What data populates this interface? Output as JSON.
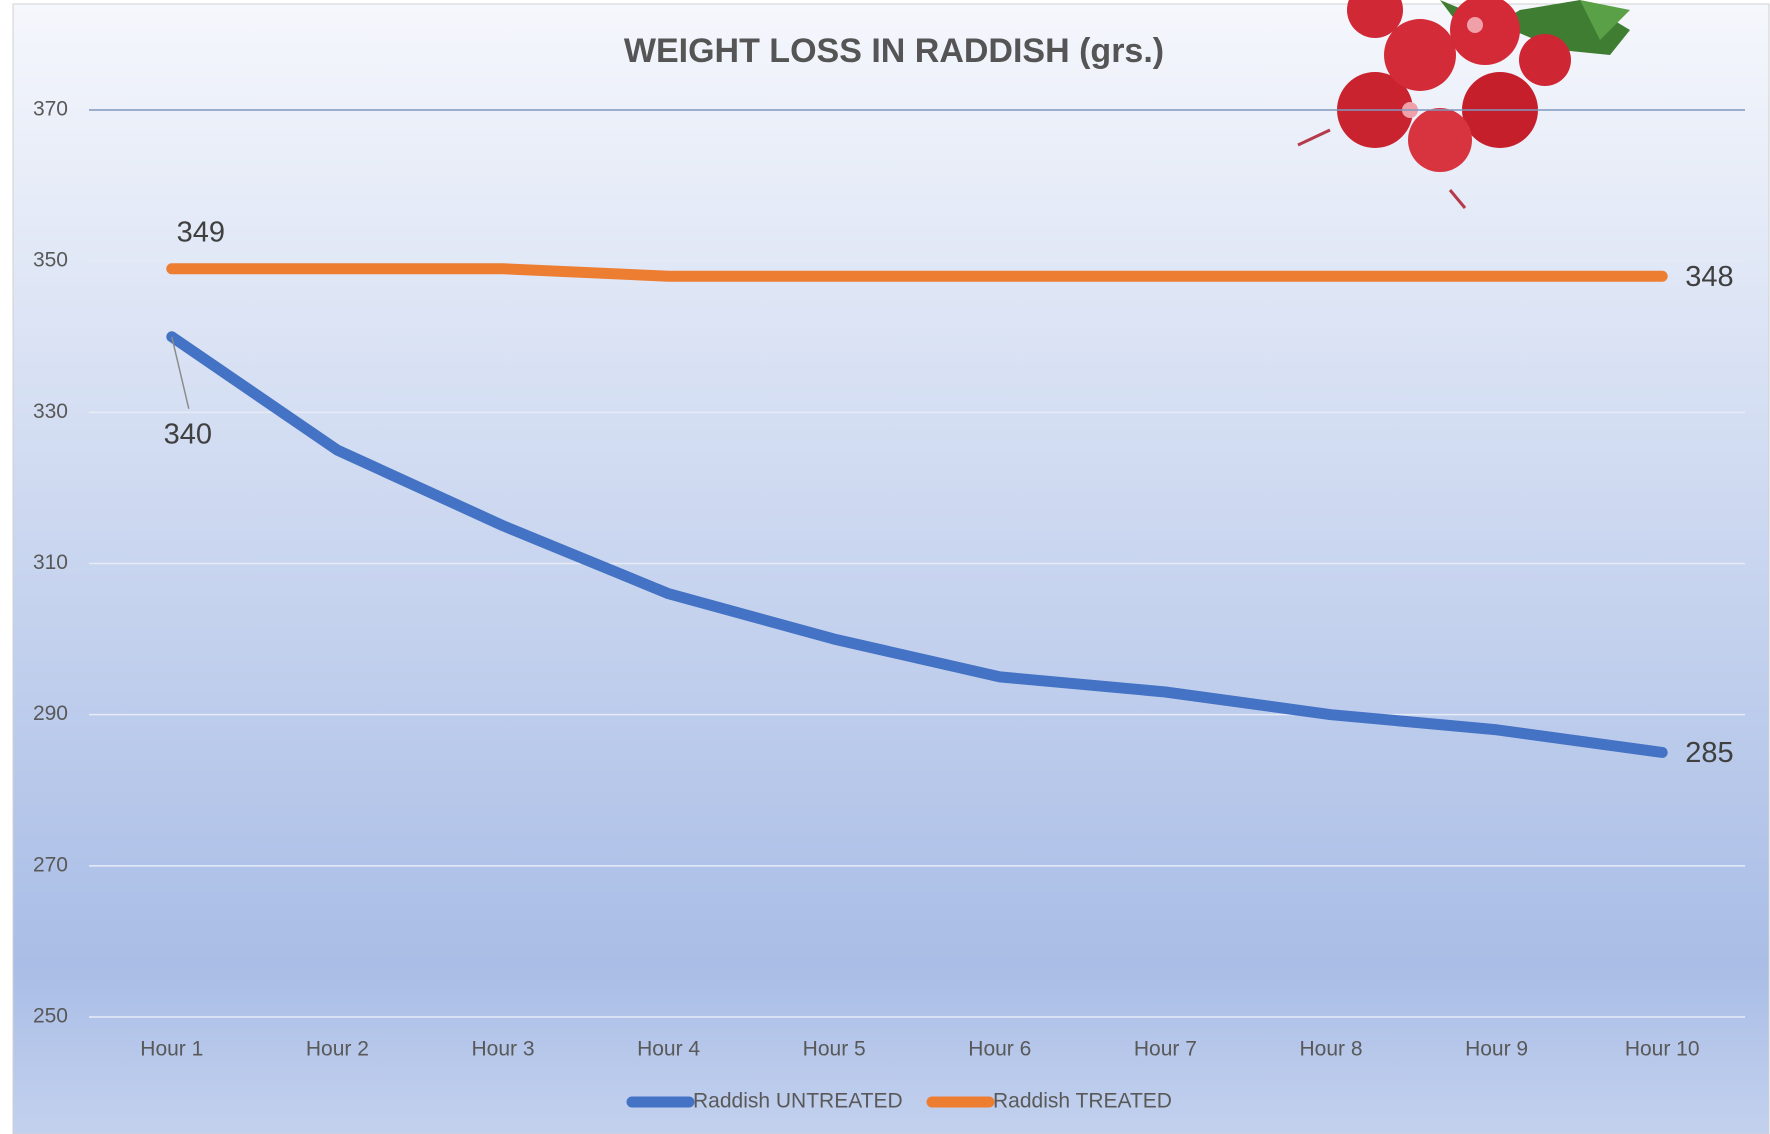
{
  "chart_data": {
    "type": "line",
    "title": "WEIGHT LOSS IN RADDISH (grs.)",
    "categories": [
      "Hour 1",
      "Hour 2",
      "Hour 3",
      "Hour 4",
      "Hour 5",
      "Hour 6",
      "Hour 7",
      "Hour 8",
      "Hour 9",
      "Hour 10"
    ],
    "series": [
      {
        "name": "Raddish UNTREATED",
        "color": "#4472c4",
        "values": [
          340,
          325,
          315,
          306,
          300,
          295,
          293,
          290,
          288,
          285
        ]
      },
      {
        "name": "Raddish TREATED",
        "color": "#ed7d31",
        "values": [
          349,
          349,
          349,
          348,
          348,
          348,
          348,
          348,
          348,
          348
        ]
      }
    ],
    "ylim": [
      250,
      370
    ],
    "yticks": [
      250,
      270,
      290,
      310,
      330,
      350,
      370
    ],
    "grid": true,
    "legend": "bottom",
    "data_labels": "ends"
  }
}
